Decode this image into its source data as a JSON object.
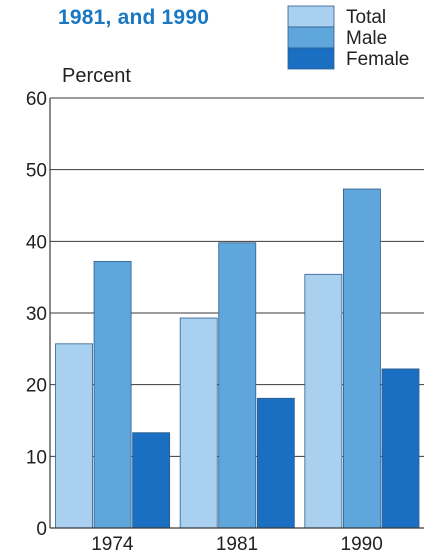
{
  "chart_data": {
    "type": "bar",
    "title": "1981, and 1990",
    "ylabel": "Percent",
    "xlabel": "",
    "categories": [
      "1974",
      "1981",
      "1990"
    ],
    "ylim": [
      0,
      60
    ],
    "yticks": [
      0,
      10,
      20,
      30,
      40,
      50,
      60
    ],
    "grid": true,
    "legend_position": "top-right",
    "series": [
      {
        "name": "Total",
        "values": [
          25.7,
          29.3,
          35.4
        ],
        "color": "#a9d1ef"
      },
      {
        "name": "Male",
        "values": [
          37.2,
          39.8,
          47.3
        ],
        "color": "#5ea6dc"
      },
      {
        "name": "Female",
        "values": [
          13.3,
          18.1,
          22.2
        ],
        "color": "#1a6fc2"
      }
    ]
  }
}
